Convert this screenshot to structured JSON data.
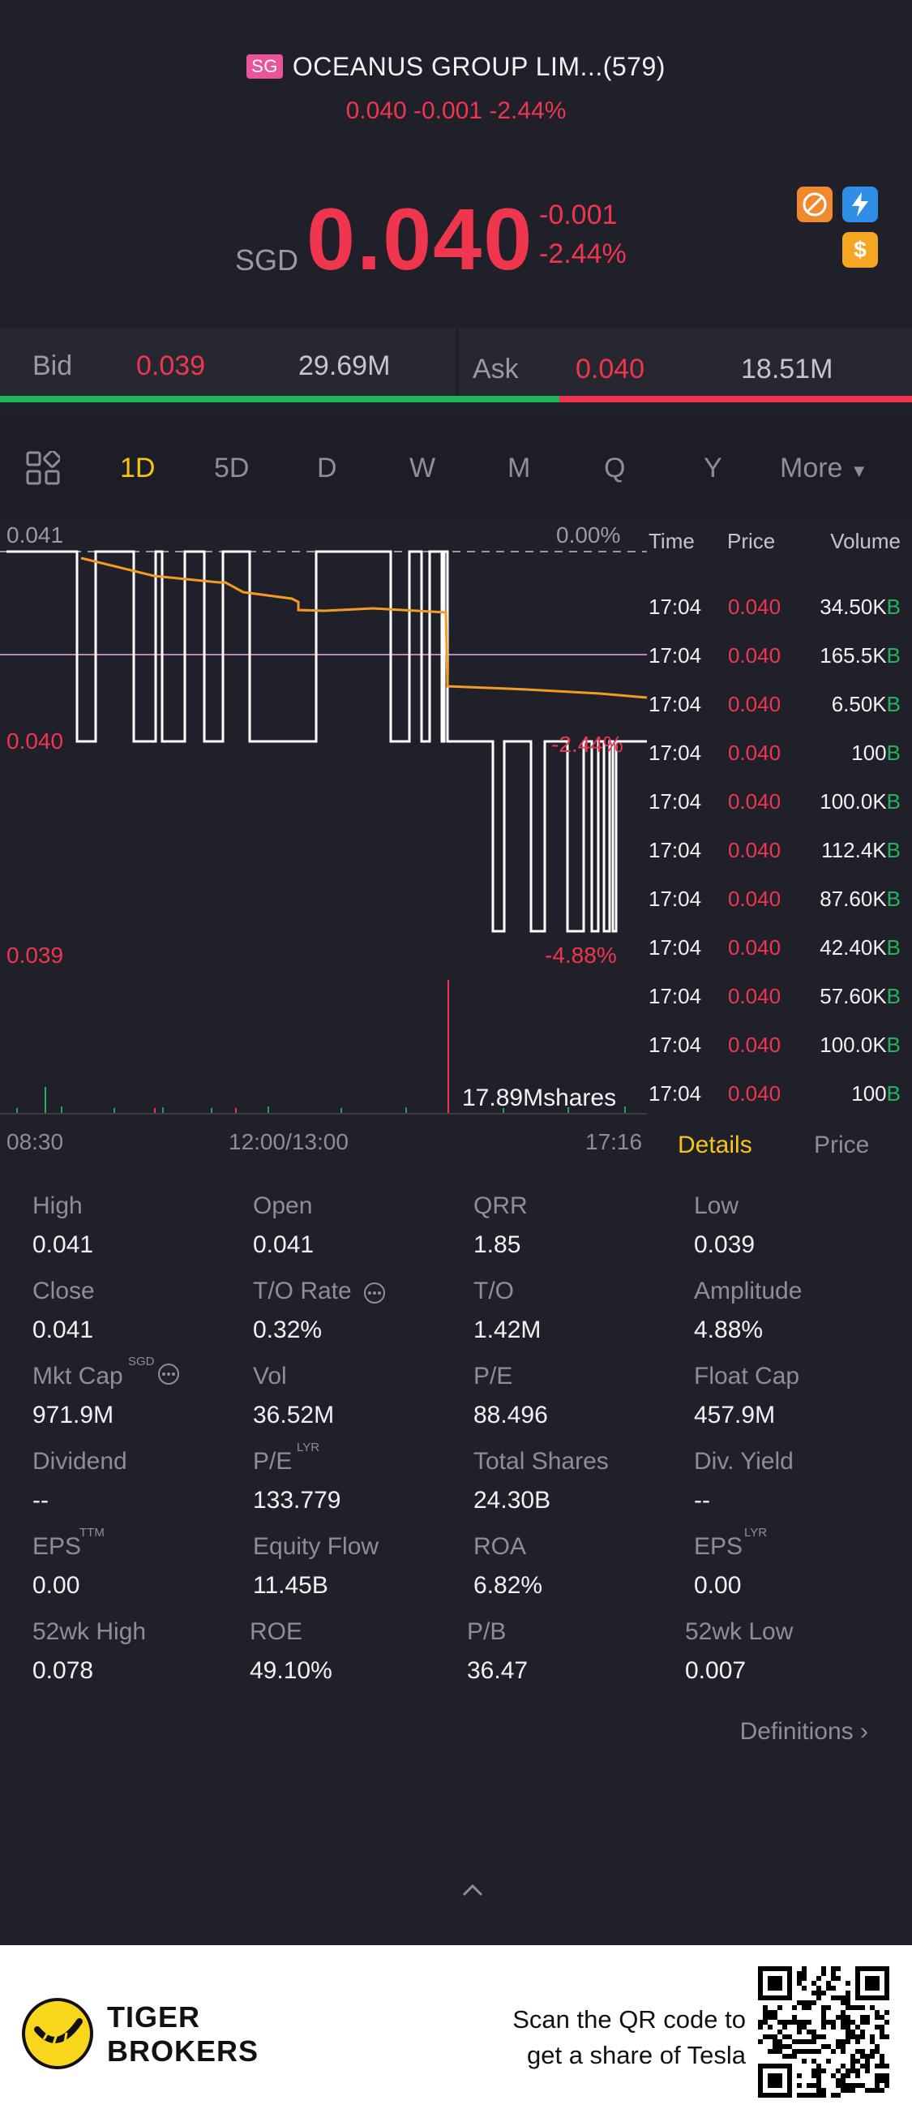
{
  "header": {
    "market_badge": "SG",
    "title": "OCEANUS GROUP LIM...(579)",
    "subtitle": "0.040 -0.001 -2.44%",
    "currency": "SGD",
    "price": "0.040",
    "change": "-0.001",
    "change_pct": "-2.44%"
  },
  "icons": [
    "no-margin-icon",
    "lightning-icon",
    "dollar-icon"
  ],
  "bid_ask": {
    "bid_label": "Bid",
    "bid_price": "0.039",
    "bid_size": "29.69M",
    "ask_label": "Ask",
    "ask_price": "0.040",
    "ask_size": "18.51M",
    "bid_share": 0.614
  },
  "tabs": [
    "1D",
    "5D",
    "D",
    "W",
    "M",
    "Q",
    "Y",
    "More"
  ],
  "active_tab": "1D",
  "chart": {
    "high_label": "0.041",
    "high_pct": "0.00%",
    "mid_label": "0.040",
    "mid_pct": "-2.44%",
    "low_label": "0.039",
    "low_pct": "-4.88%",
    "volume_label": "17.89Mshares",
    "time_start": "08:30",
    "time_mid": "12:00/13:00",
    "time_end": "17:16"
  },
  "chart_data": {
    "type": "line",
    "ylim": [
      0.039,
      0.041
    ],
    "series": [],
    "notes": []
  },
  "trades": {
    "headers": {
      "time": "Time",
      "price": "Price",
      "volume": "Volume"
    },
    "rows": [
      {
        "time": "17:04",
        "price": "0.040",
        "volume": "34.50K",
        "side": "B"
      },
      {
        "time": "17:04",
        "price": "0.040",
        "volume": "165.5K",
        "side": "B"
      },
      {
        "time": "17:04",
        "price": "0.040",
        "volume": "6.50K",
        "side": "B"
      },
      {
        "time": "17:04",
        "price": "0.040",
        "volume": "100",
        "side": "B"
      },
      {
        "time": "17:04",
        "price": "0.040",
        "volume": "100.0K",
        "side": "B"
      },
      {
        "time": "17:04",
        "price": "0.040",
        "volume": "112.4K",
        "side": "B"
      },
      {
        "time": "17:04",
        "price": "0.040",
        "volume": "87.60K",
        "side": "B"
      },
      {
        "time": "17:04",
        "price": "0.040",
        "volume": "42.40K",
        "side": "B"
      },
      {
        "time": "17:04",
        "price": "0.040",
        "volume": "57.60K",
        "side": "B"
      },
      {
        "time": "17:04",
        "price": "0.040",
        "volume": "100.0K",
        "side": "B"
      },
      {
        "time": "17:04",
        "price": "0.040",
        "volume": "100",
        "side": "B"
      }
    ]
  },
  "detail_tabs": {
    "details": "Details",
    "price": "Price"
  },
  "stats": [
    [
      {
        "label": "High",
        "value": "0.041"
      },
      {
        "label": "Open",
        "value": "0.041"
      },
      {
        "label": "QRR",
        "value": "1.85"
      },
      {
        "label": "Low",
        "value": "0.039"
      }
    ],
    [
      {
        "label": "Close",
        "value": "0.041"
      },
      {
        "label": "T/O Rate",
        "value": "0.32%"
      },
      {
        "label": "T/O",
        "value": "1.42M"
      },
      {
        "label": "Amplitude",
        "value": "4.88%"
      }
    ],
    [
      {
        "label": "Mkt Cap",
        "value": "971.9M"
      },
      {
        "label": "Vol",
        "value": "36.52M"
      },
      {
        "label": "P/E",
        "value": "88.496"
      },
      {
        "label": "Float Cap",
        "value": "457.9M"
      }
    ],
    [
      {
        "label": "Dividend",
        "value": "--"
      },
      {
        "label": "P/E",
        "value": "133.779"
      },
      {
        "label": "Total Shares",
        "value": "24.30B"
      },
      {
        "label": "Div. Yield",
        "value": "--"
      }
    ],
    [
      {
        "label": "EPS",
        "value": "0.00"
      },
      {
        "label": "Equity Flow",
        "value": "11.45B"
      },
      {
        "label": "ROA",
        "value": "6.82%"
      },
      {
        "label": "EPS",
        "value": "0.00"
      }
    ],
    [
      {
        "label": "52wk High",
        "value": "0.078"
      },
      {
        "label": "ROE",
        "value": "49.10%"
      },
      {
        "label": "P/B",
        "value": "36.47"
      },
      {
        "label": "52wk Low",
        "value": "0.007"
      }
    ]
  ],
  "superscripts": {
    "mkt_cap": "SGD",
    "pe_lyr": "LYR",
    "eps_ttm": "TTM",
    "eps_lyr": "LYR"
  },
  "definitions": "Definitions",
  "footer": {
    "brand_line1": "TIGER",
    "brand_line2": "BROKERS",
    "scan_line1": "Scan the QR code to",
    "scan_line2": "get a share of Tesla"
  }
}
